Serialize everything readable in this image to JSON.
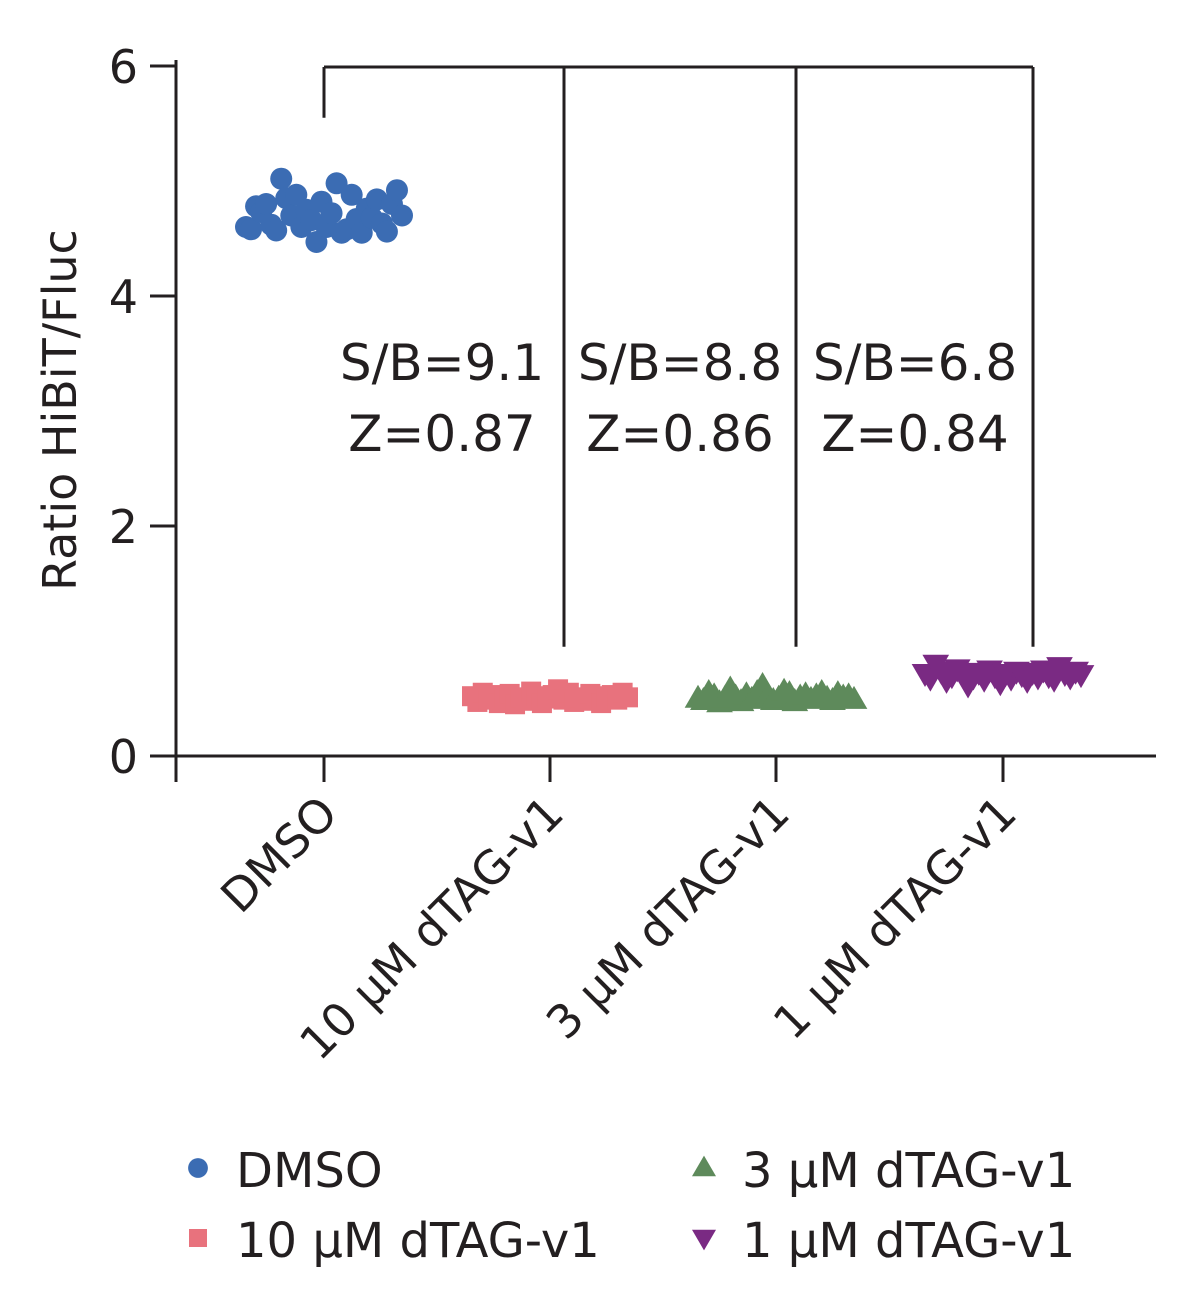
{
  "chart_data": {
    "type": "scatter",
    "title": "",
    "xlabel": "",
    "ylabel": "Ratio HiBiT/Fluc",
    "ylim": [
      0,
      6
    ],
    "y_ticks": [
      "0",
      "2",
      "4",
      "6"
    ],
    "categories": [
      "DMSO",
      "10 µM dTAG-v1",
      "3 µM dTAG-v1",
      "1 µM dTAG-v1"
    ],
    "grid": false,
    "legend_position": "bottom",
    "series": [
      {
        "name": "DMSO",
        "marker": "circle",
        "color": "#3b6cb3",
        "category": "DMSO",
        "values": [
          4.6,
          4.58,
          4.78,
          4.73,
          4.8,
          4.62,
          4.57,
          5.02,
          4.85,
          4.7,
          4.88,
          4.6,
          4.75,
          4.66,
          4.47,
          4.82,
          4.6,
          4.72,
          4.98,
          4.55,
          4.58,
          4.88,
          4.67,
          4.55,
          4.76,
          4.68,
          4.84,
          4.63,
          4.56,
          4.8,
          4.92,
          4.7
        ]
      },
      {
        "name": "10 µM dTAG-v1",
        "marker": "square",
        "color": "#e8727d",
        "category": "10 µM dTAG-v1",
        "values": [
          0.52,
          0.47,
          0.55,
          0.49,
          0.53,
          0.46,
          0.5,
          0.54,
          0.45,
          0.51,
          0.48,
          0.56,
          0.52,
          0.46,
          0.5,
          0.53,
          0.58,
          0.49,
          0.55,
          0.47,
          0.51,
          0.48,
          0.54,
          0.52,
          0.46,
          0.5,
          0.53,
          0.49,
          0.55,
          0.51
        ]
      },
      {
        "name": "3 µM dTAG-v1",
        "marker": "triangle-up",
        "color": "#5e8a5b",
        "category": "3 µM dTAG-v1",
        "values": [
          0.5,
          0.48,
          0.55,
          0.52,
          0.46,
          0.5,
          0.58,
          0.51,
          0.47,
          0.53,
          0.49,
          0.55,
          0.61,
          0.52,
          0.48,
          0.5,
          0.56,
          0.54,
          0.47,
          0.51,
          0.53,
          0.49,
          0.52,
          0.55,
          0.5,
          0.48,
          0.54,
          0.51,
          0.52,
          0.49
        ]
      },
      {
        "name": "1 µM dTAG-v1",
        "marker": "triangle-down",
        "color": "#7a2a83",
        "category": "1 µM dTAG-v1",
        "values": [
          0.72,
          0.68,
          0.8,
          0.74,
          0.66,
          0.7,
          0.76,
          0.71,
          0.62,
          0.69,
          0.73,
          0.67,
          0.75,
          0.7,
          0.64,
          0.72,
          0.68,
          0.74,
          0.71,
          0.66,
          0.73,
          0.69,
          0.75,
          0.7,
          0.67,
          0.78,
          0.72,
          0.69,
          0.74,
          0.71
        ]
      }
    ],
    "comparisons": [
      {
        "from": "DMSO",
        "to": "10 µM dTAG-v1",
        "lines": [
          "S/B=9.1",
          "Z=0.87"
        ]
      },
      {
        "from": "DMSO",
        "to": "3 µM dTAG-v1",
        "lines": [
          "S/B=8.8",
          "Z=0.86"
        ]
      },
      {
        "from": "DMSO",
        "to": "1 µM dTAG-v1",
        "lines": [
          "S/B=6.8",
          "Z=0.84"
        ]
      }
    ]
  }
}
